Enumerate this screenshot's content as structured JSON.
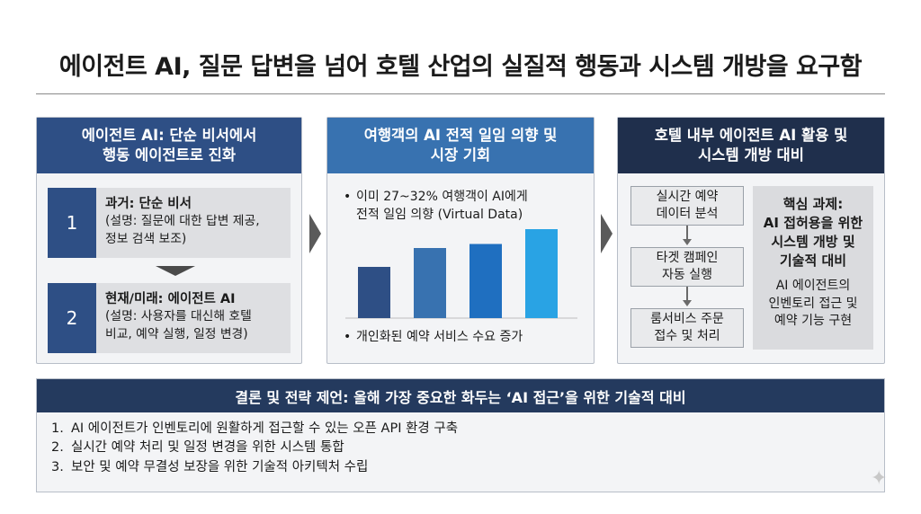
{
  "title": "에이전트 AI, 질문 답변을 넘어 호텔 산업의 실질적 행동과 시스템 개방을 요구함",
  "panel1": {
    "header": "에이전트 AI: 단순 비서에서\n행동 에이전트로 진화",
    "steps": [
      {
        "num": "1",
        "title": "과거: 단순 비서",
        "desc": "(설명: 질문에 대한 답변 제공,\n정보 검색 보조)"
      },
      {
        "num": "2",
        "title": "현재/미래: 에이전트 AI",
        "desc": "(설명: 사용자를 대신해 호텔\n비교, 예약 실행, 일정 변경)"
      }
    ]
  },
  "panel2": {
    "header": "여행객의 AI 전적 일임 의향 및\n시장 기회",
    "bullet1": "이미 27~32% 여행객이 AI에게\n전적 일임 의향 (Virtual Data)",
    "bullet2": "개인화된 예약 서비스 수요 증가",
    "bullet_symbol": "•"
  },
  "chart_data": {
    "type": "bar",
    "values": [
      0.38,
      0.52,
      0.55,
      0.66
    ],
    "colors": [
      "#2e4f85",
      "#3872b0",
      "#1f6fc0",
      "#29a3e4"
    ],
    "title": "",
    "xlabel": "",
    "ylabel": ""
  },
  "panel3": {
    "header": "호텔 내부 에이전트 AI 활용 및\n시스템 개방 대비",
    "flow": [
      "실시간 예약\n데이터 분석",
      "타겟 캠페인\n자동 실행",
      "룸서비스 주문\n접수 및 처리"
    ],
    "core_title": "핵심 과제:\nAI 접허용을 위한\n시스템 개방 및\n기술적 대비",
    "core_desc": "AI 에이전트의\n인벤토리 접근 및\n예약 기능 구현"
  },
  "conclusion": {
    "header": "결론 및 전략 제언: 올해 가장 중요한 화두는 ‘AI 접근’을 위한 기술적 대비",
    "items": [
      {
        "n": "1.",
        "text": "AI 에이전트가 인벤토리에 원활하게 접근할 수 있는 오픈 API 환경 구축"
      },
      {
        "n": "2.",
        "text": "실시간 예약 처리 및 일정 변경을 위한 시스템 통합"
      },
      {
        "n": "3.",
        "text": "보안 및 예약 무결성 보장을 위한 기술적 아키텍처 수립"
      }
    ]
  },
  "colors": {
    "navy": "#2e4f85",
    "blue": "#3872b0",
    "dark": "#1f2f4c",
    "conclusion_head": "#243a5e"
  },
  "icons": {
    "chevron": "chevron-right-icon",
    "sparkle": "sparkle-icon"
  }
}
